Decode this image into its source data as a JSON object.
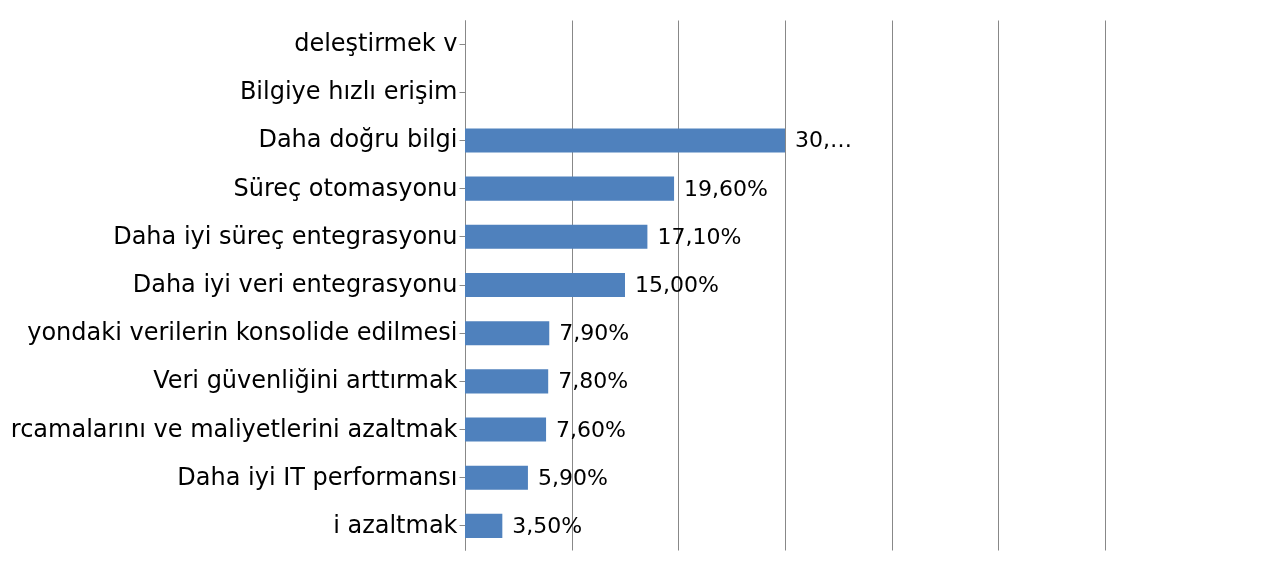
{
  "chart_data": {
    "type": "bar",
    "orientation": "horizontal",
    "categories": [
      "deleştirmek v",
      "Bilgiye hızlı erişim",
      "Daha doğru bilgi",
      "Süreç otomasyonu",
      "Daha iyi süreç entegrasyonu",
      "Daha iyi veri entegrasyonu",
      "yondaki verilerin konsolide edilmesi",
      "Veri güvenliğini arttırmak",
      "rcamalarını ve maliyetlerini azaltmak",
      "Daha iyi IT performansı",
      "i azaltmak"
    ],
    "values": [
      null,
      null,
      30,
      19.6,
      17.1,
      15.0,
      7.9,
      7.8,
      7.6,
      5.9,
      3.5
    ],
    "value_labels": [
      null,
      null,
      "30,…",
      "19,60%",
      "17,10%",
      "15,00%",
      "7,90%",
      "7,80%",
      "7,60%",
      "5,90%",
      "3,50%"
    ],
    "color": "#4f81bd",
    "xlim": [
      0,
      60
    ],
    "xticks": [
      {
        "value": 0,
        "label": null
      },
      {
        "value": 10,
        "label": null
      },
      {
        "value": 20,
        "label": null
      },
      {
        "value": 30,
        "label": null
      },
      {
        "value": 40,
        "label": null
      },
      {
        "value": 50,
        "label": null
      },
      {
        "value": 60,
        "label": null
      }
    ],
    "grid": "x",
    "tick_labels": "y"
  }
}
